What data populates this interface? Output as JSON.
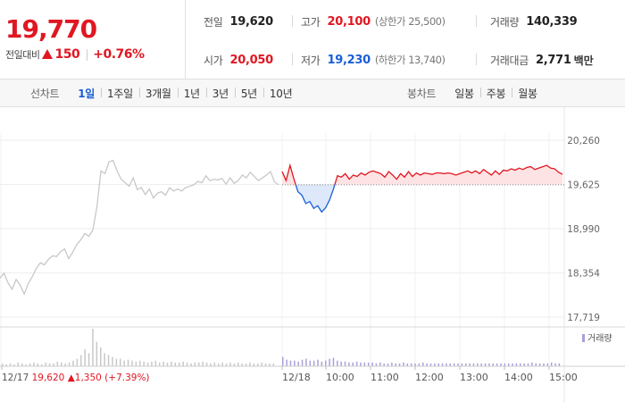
{
  "summary": {
    "current_price": "19,770",
    "change_label": "전일대비",
    "change_value": "150",
    "change_rate": "+0.76%",
    "prev_close_label": "전일",
    "prev_close": "19,620",
    "high_label": "고가",
    "high": "20,100",
    "upper_limit": "(상한가 25,500)",
    "volume_label": "거래량",
    "volume": "140,339",
    "open_label": "시가",
    "open": "20,050",
    "low_label": "저가",
    "low": "19,230",
    "lower_limit": "(하한가 13,740)",
    "amount_label": "거래대금",
    "amount": "2,771",
    "amount_unit": "백만"
  },
  "tabs": {
    "line_title": "선차트",
    "line_periods": [
      "1일",
      "1주일",
      "3개월",
      "1년",
      "3년",
      "5년",
      "10년"
    ],
    "active_index": 0,
    "candle_title": "봉차트",
    "candle_periods": [
      "일봉",
      "주봉",
      "월봉"
    ]
  },
  "colors": {
    "up": "#e01722",
    "down": "#1b5ed6",
    "prev_day_line": "#c8c8c8",
    "up_fill": "#fde3e3",
    "down_fill": "#dde8fa",
    "volume_bar": "#c8c8c8",
    "volume_bar_today": "#a8a0d8"
  },
  "chart_data": {
    "type": "line",
    "y_ticks": [
      "20,260",
      "19,625",
      "18,990",
      "18,354",
      "17,719"
    ],
    "ylim": [
      17719,
      20260
    ],
    "baseline": 19620,
    "x_labels": [
      "12/17",
      "12/18",
      "10:00",
      "11:00",
      "12:00",
      "13:00",
      "14:00",
      "15:00"
    ],
    "prev_day_note": {
      "date": "12/17",
      "close": "19,620",
      "change": "1,350",
      "rate": "(+7.39%)"
    },
    "volume_legend": "거래량",
    "series": [
      {
        "name": "12/17",
        "values": [
          18280,
          18350,
          18210,
          18120,
          18260,
          18180,
          18050,
          18200,
          18300,
          18420,
          18500,
          18470,
          18550,
          18600,
          18590,
          18660,
          18700,
          18560,
          18650,
          18760,
          18830,
          18920,
          18880,
          18970,
          19300,
          19820,
          19780,
          19950,
          19970,
          19820,
          19700,
          19650,
          19600,
          19720,
          19550,
          19580,
          19480,
          19560,
          19430,
          19500,
          19520,
          19470,
          19580,
          19530,
          19560,
          19530,
          19580,
          19600,
          19620,
          19670,
          19650,
          19750,
          19680,
          19700,
          19690,
          19710,
          19630,
          19720,
          19640,
          19680,
          19760,
          19720,
          19800,
          19740,
          19680,
          19720,
          19760,
          19810,
          19660,
          19620
        ]
      },
      {
        "name": "12/18",
        "values": [
          19810,
          19680,
          19900,
          19700,
          19520,
          19470,
          19350,
          19380,
          19280,
          19320,
          19230,
          19290,
          19400,
          19560,
          19750,
          19730,
          19780,
          19700,
          19760,
          19740,
          19790,
          19760,
          19800,
          19820,
          19800,
          19780,
          19730,
          19810,
          19760,
          19700,
          19780,
          19730,
          19810,
          19740,
          19790,
          19760,
          19790,
          19780,
          19770,
          19790,
          19790,
          19780,
          19790,
          19780,
          19760,
          19780,
          19800,
          19820,
          19790,
          19820,
          19780,
          19840,
          19800,
          19760,
          19820,
          19770,
          19830,
          19820,
          19850,
          19830,
          19860,
          19840,
          19870,
          19880,
          19840,
          19860,
          19880,
          19900,
          19860,
          19850,
          19800,
          19770
        ]
      }
    ],
    "volume": {
      "prev_day": [
        3,
        2,
        3,
        2,
        4,
        3,
        2,
        3,
        4,
        3,
        2,
        4,
        3,
        3,
        5,
        4,
        3,
        4,
        6,
        8,
        12,
        18,
        14,
        40,
        26,
        20,
        14,
        12,
        10,
        8,
        8,
        6,
        7,
        6,
        5,
        6,
        5,
        4,
        5,
        6,
        4,
        5,
        4,
        5,
        4,
        4,
        5,
        4,
        3,
        4,
        4,
        5,
        4,
        3,
        4,
        3,
        4,
        3,
        4,
        3,
        4,
        3,
        3,
        4,
        3,
        3,
        4,
        3,
        3,
        3
      ],
      "today": [
        10,
        7,
        6,
        6,
        5,
        7,
        8,
        6,
        6,
        7,
        5,
        6,
        8,
        9,
        6,
        5,
        5,
        4,
        4,
        5,
        4,
        4,
        4,
        4,
        3,
        4,
        3,
        3,
        4,
        3,
        3,
        4,
        3,
        3,
        3,
        3,
        4,
        3,
        3,
        3,
        3,
        3,
        3,
        3,
        3,
        3,
        3,
        3,
        3,
        3,
        3,
        3,
        3,
        3,
        3,
        3,
        3,
        3,
        3,
        3,
        3,
        3,
        3,
        3,
        4,
        3,
        3,
        3,
        3,
        4,
        3,
        3
      ]
    }
  }
}
